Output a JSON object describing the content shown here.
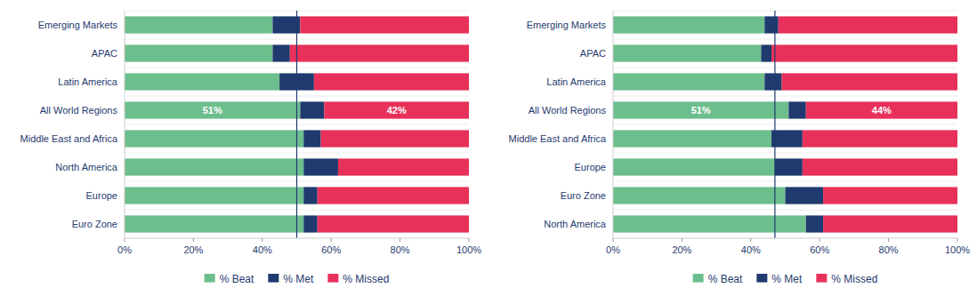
{
  "chart_data": [
    {
      "type": "bar",
      "orientation": "horizontal",
      "stacked": true,
      "legend": "bottom",
      "grid": false,
      "categories": [
        "Emerging Markets",
        "APAC",
        "Latin America",
        "All World Regions",
        "Middle East and Africa",
        "North America",
        "Europe",
        "Euro Zone"
      ],
      "series": [
        {
          "name": "% Beat",
          "color": "#6dbe8d",
          "values": [
            43,
            43,
            45,
            51,
            52,
            52,
            52,
            52
          ],
          "value_labels": [
            null,
            null,
            null,
            "51%",
            null,
            null,
            null,
            null
          ]
        },
        {
          "name": "% Met",
          "color": "#1f3a6e",
          "values": [
            8,
            5,
            10,
            7,
            5,
            10,
            4,
            4
          ]
        },
        {
          "name": "% Missed",
          "color": "#e8315a",
          "values": [
            49,
            52,
            45,
            42,
            43,
            38,
            44,
            44
          ],
          "value_labels": [
            null,
            null,
            null,
            "42%",
            null,
            null,
            null,
            null
          ]
        }
      ],
      "reference_line": 50,
      "xlim": [
        0,
        100
      ],
      "xticks": [
        {
          "value": 0,
          "label": "0%"
        },
        {
          "value": 20,
          "label": "20%"
        },
        {
          "value": 40,
          "label": "40%"
        },
        {
          "value": 60,
          "label": "60%"
        },
        {
          "value": 80,
          "label": "80%"
        },
        {
          "value": 100,
          "label": "100%"
        }
      ]
    },
    {
      "type": "bar",
      "orientation": "horizontal",
      "stacked": true,
      "legend": "bottom",
      "grid": false,
      "categories": [
        "Emerging Markets",
        "APAC",
        "Latin America",
        "All World Regions",
        "Middle East and Africa",
        "Europe",
        "Euro Zone",
        "North America"
      ],
      "series": [
        {
          "name": "% Beat",
          "color": "#6dbe8d",
          "values": [
            44,
            43,
            44,
            51,
            46,
            47,
            50,
            56
          ],
          "value_labels": [
            null,
            null,
            null,
            "51%",
            null,
            null,
            null,
            null
          ]
        },
        {
          "name": "% Met",
          "color": "#1f3a6e",
          "values": [
            4,
            3,
            5,
            5,
            9,
            8,
            11,
            5
          ]
        },
        {
          "name": "% Missed",
          "color": "#e8315a",
          "values": [
            52,
            54,
            51,
            44,
            45,
            45,
            39,
            39
          ],
          "value_labels": [
            null,
            null,
            null,
            "44%",
            null,
            null,
            null,
            null
          ]
        }
      ],
      "reference_line": 47,
      "xlim": [
        0,
        100
      ],
      "xticks": [
        {
          "value": 0,
          "label": "0%"
        },
        {
          "value": 20,
          "label": "20%"
        },
        {
          "value": 40,
          "label": "40%"
        },
        {
          "value": 60,
          "label": "60%"
        },
        {
          "value": 80,
          "label": "80%"
        },
        {
          "value": 100,
          "label": "100%"
        }
      ]
    }
  ]
}
